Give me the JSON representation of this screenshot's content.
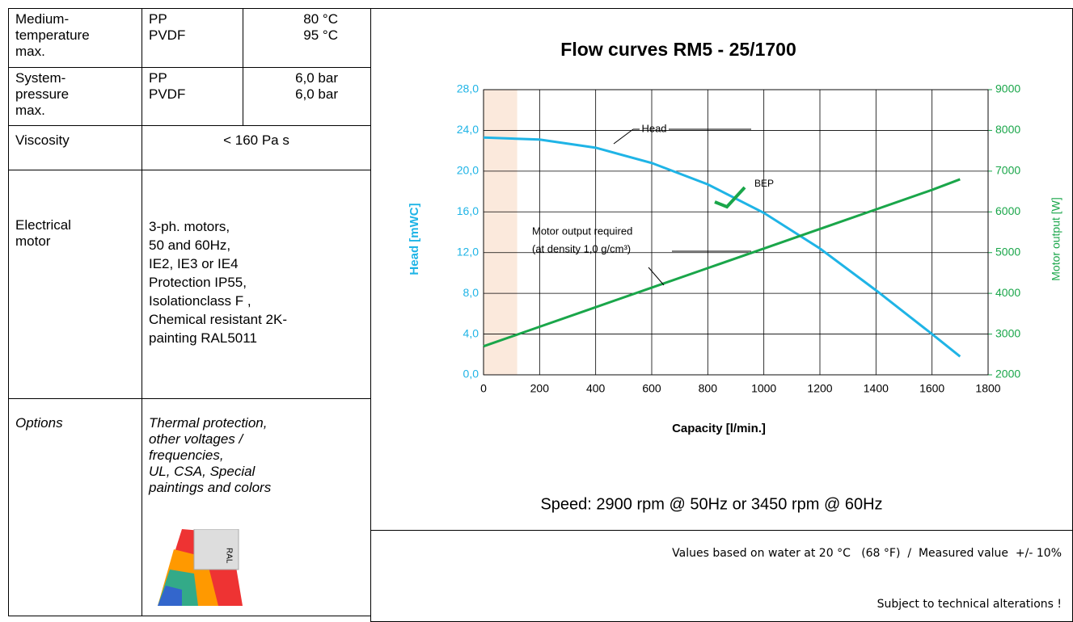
{
  "table": {
    "rows": [
      [
        "Medium-\ntemperature\nmax.",
        "PP\nPVDF",
        "80 °C\n95 °C"
      ],
      [
        "System-\npressure\nmax.",
        "PP\nPVDF",
        "6,0 bar\n6,0 bar"
      ],
      [
        "Viscosity",
        "< 160 Pa s"
      ],
      [
        "Electrical\nmotor",
        "3-ph. motors,\n50 and 60Hz,\nIE2, IE3 or IE4\nProtection IP55,\nIsolationclass F ,\nChemical resistant 2K-\npainting RAL5011"
      ],
      [
        "Options",
        "Thermal protection,\nother voltages /\nfrequencies,\nUL, CSA, Special\npaintings and colors"
      ]
    ],
    "swatch_label": "RAL"
  },
  "chart_data": {
    "type": "line",
    "title": "Flow curves   RM5 - 25/1700",
    "x_label": "Capacity  [l/min.]",
    "y_label": "Head  [mWC]",
    "y2_label": "Motor output [W]",
    "x": [
      0,
      200,
      400,
      600,
      800,
      1000,
      1200,
      1400,
      1600,
      1700
    ],
    "series": [
      {
        "name": "Head",
        "color": "#1fb4e6",
        "values": [
          23.3,
          23.1,
          22.3,
          20.8,
          18.7,
          15.9,
          12.4,
          8.3,
          4.0,
          1.8
        ]
      },
      {
        "name": "Motor output required",
        "color": "#1aa64a",
        "axis": "y2",
        "values": [
          2700,
          3180,
          3660,
          4140,
          4620,
          5100,
          5580,
          6060,
          6540,
          6800
        ]
      }
    ],
    "annotations": [
      "BEP",
      "(at density 1,0 g/cm³)"
    ],
    "xlim": [
      0,
      1800
    ],
    "xticks": [
      0,
      200,
      400,
      600,
      800,
      1000,
      1200,
      1400,
      1600,
      1800
    ],
    "ylim": [
      0,
      28
    ],
    "yticks": [
      {
        "value": 0,
        "label": "0,0"
      },
      {
        "value": 4,
        "label": "4,0"
      },
      {
        "value": 8,
        "label": "8,0"
      },
      {
        "value": 12,
        "label": "12,0"
      },
      {
        "value": 16,
        "label": "16,0"
      },
      {
        "value": 20,
        "label": "20,0"
      },
      {
        "value": 24,
        "label": "24,0"
      },
      {
        "value": 28,
        "label": "28,0"
      }
    ],
    "y2lim": [
      2000,
      9000
    ],
    "y2ticks": [
      2000,
      3000,
      4000,
      5000,
      6000,
      7000,
      8000,
      9000
    ],
    "grid": true
  },
  "notes": {
    "speed": "Speed: 2900 rpm @ 50Hz  or   3450 rpm @ 60Hz",
    "basis": "Values based on water at 20 °C   (68 °F)  /  Measured value  +/- 10%",
    "disclaimer": "Subject to technical alterations !"
  }
}
